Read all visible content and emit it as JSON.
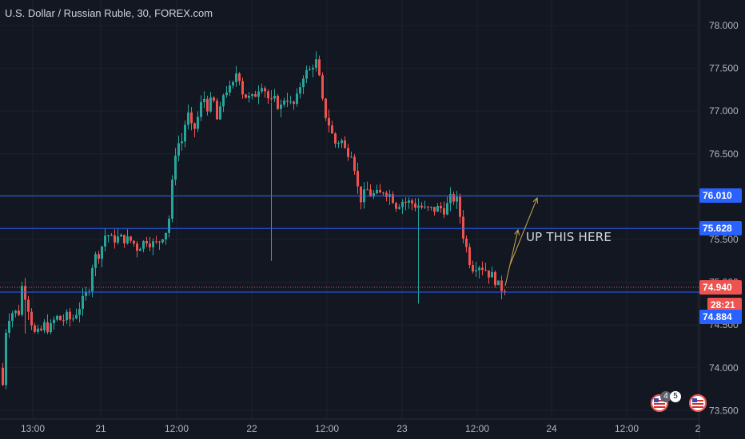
{
  "header": {
    "title": "U.S. Dollar / Russian Ruble, 30, FOREX.com"
  },
  "annotation": {
    "text": "UP THIS HERE"
  },
  "price_badges": {
    "line_upper": "76.010",
    "line_lower": "75.628",
    "current_price": "74.940",
    "countdown": "28:21",
    "line_support": "74.884"
  },
  "events": {
    "count_a": "4",
    "count_b": "5"
  },
  "colors": {
    "background": "#131722",
    "grid": "#1e222d",
    "bull": "#26a69a",
    "bear": "#ef5350",
    "hline": "#2962ff",
    "arrow": "#c8a951",
    "price_badge": "#ef5350",
    "level_badge": "#2962ff"
  },
  "chart_data": {
    "type": "candlestick",
    "title": "U.S. Dollar / Russian Ruble, 30, FOREX.com",
    "ylim": [
      73.5,
      78.0
    ],
    "yticks": [
      "78.000",
      "77.500",
      "77.000",
      "76.500",
      "76.000",
      "75.500",
      "75.000",
      "74.500",
      "74.000",
      "73.500"
    ],
    "xticks": [
      "13:00",
      "21",
      "12:00",
      "22",
      "12:00",
      "23",
      "12:00",
      "24",
      "12:00",
      "2"
    ],
    "horizontal_levels": [
      76.01,
      75.628,
      74.884
    ],
    "current_price": 74.94,
    "series_path": [
      [
        0,
        74.2
      ],
      [
        4,
        73.8
      ],
      [
        9,
        74.6
      ],
      [
        14,
        74.6
      ],
      [
        18,
        74.7
      ],
      [
        22,
        74.6
      ],
      [
        26,
        74.7
      ],
      [
        28,
        74.95
      ],
      [
        30,
        74.9
      ],
      [
        34,
        74.8
      ],
      [
        38,
        74.6
      ],
      [
        44,
        74.4
      ],
      [
        50,
        74.4
      ],
      [
        56,
        74.5
      ],
      [
        62,
        74.45
      ],
      [
        66,
        74.5
      ],
      [
        70,
        74.6
      ],
      [
        78,
        74.55
      ],
      [
        84,
        74.6
      ],
      [
        90,
        74.55
      ],
      [
        96,
        74.65
      ],
      [
        102,
        74.75
      ],
      [
        108,
        74.85
      ],
      [
        112,
        74.95
      ],
      [
        116,
        75.2
      ],
      [
        120,
        75.3
      ],
      [
        126,
        75.35
      ],
      [
        130,
        75.5
      ],
      [
        134,
        75.6
      ],
      [
        138,
        75.5
      ],
      [
        142,
        75.5
      ],
      [
        150,
        75.52
      ],
      [
        158,
        75.5
      ],
      [
        166,
        75.48
      ],
      [
        172,
        75.4
      ],
      [
        178,
        75.45
      ],
      [
        184,
        75.5
      ],
      [
        190,
        75.45
      ],
      [
        196,
        75.45
      ],
      [
        202,
        75.5
      ],
      [
        206,
        75.6
      ],
      [
        210,
        75.6
      ],
      [
        214,
        75.9
      ],
      [
        218,
        76.4
      ],
      [
        222,
        76.65
      ],
      [
        226,
        76.6
      ],
      [
        230,
        76.7
      ],
      [
        234,
        77.0
      ],
      [
        238,
        76.9
      ],
      [
        242,
        76.7
      ],
      [
        246,
        76.9
      ],
      [
        250,
        76.95
      ],
      [
        254,
        77.2
      ],
      [
        258,
        77.1
      ],
      [
        262,
        77.0
      ],
      [
        266,
        77.2
      ],
      [
        270,
        77.0
      ],
      [
        274,
        76.8
      ],
      [
        278,
        77.2
      ],
      [
        282,
        77.2
      ],
      [
        286,
        77.3
      ],
      [
        290,
        77.2
      ],
      [
        294,
        77.4
      ],
      [
        298,
        77.5
      ],
      [
        302,
        77.3
      ],
      [
        306,
        77.15
      ],
      [
        310,
        77.2
      ],
      [
        314,
        77.1
      ],
      [
        318,
        77.2
      ],
      [
        322,
        77.2
      ],
      [
        326,
        77.35
      ],
      [
        330,
        77.3
      ],
      [
        334,
        77.2
      ],
      [
        338,
        77.1
      ],
      [
        342,
        77.1
      ],
      [
        346,
        77.15
      ],
      [
        350,
        77.0
      ],
      [
        354,
        77.1
      ],
      [
        358,
        77.2
      ],
      [
        362,
        77.1
      ],
      [
        366,
        77.05
      ],
      [
        370,
        77.1
      ],
      [
        374,
        77.2
      ],
      [
        378,
        77.4
      ],
      [
        382,
        77.45
      ],
      [
        386,
        77.45
      ],
      [
        390,
        77.5
      ],
      [
        394,
        77.6
      ],
      [
        398,
        77.55
      ],
      [
        402,
        77.2
      ],
      [
        406,
        77.0
      ],
      [
        410,
        76.9
      ],
      [
        414,
        76.8
      ],
      [
        418,
        76.65
      ],
      [
        422,
        76.6
      ],
      [
        426,
        76.7
      ],
      [
        430,
        76.6
      ],
      [
        434,
        76.5
      ],
      [
        438,
        76.55
      ],
      [
        442,
        76.5
      ],
      [
        446,
        76.2
      ],
      [
        450,
        76.0
      ],
      [
        454,
        75.95
      ],
      [
        458,
        76.1
      ],
      [
        462,
        76.05
      ],
      [
        466,
        76.0
      ],
      [
        470,
        76.05
      ],
      [
        474,
        76.0
      ],
      [
        478,
        76.05
      ],
      [
        482,
        76.1
      ],
      [
        486,
        76.0
      ],
      [
        490,
        76.05
      ],
      [
        494,
        75.9
      ],
      [
        498,
        75.9
      ],
      [
        502,
        75.95
      ],
      [
        506,
        75.95
      ],
      [
        510,
        75.92
      ],
      [
        514,
        75.95
      ],
      [
        518,
        75.9
      ],
      [
        522,
        75.9
      ],
      [
        526,
        75.9
      ],
      [
        530,
        75.85
      ],
      [
        534,
        75.85
      ],
      [
        538,
        75.85
      ],
      [
        542,
        75.85
      ],
      [
        546,
        75.85
      ],
      [
        550,
        75.88
      ],
      [
        554,
        75.85
      ],
      [
        558,
        75.85
      ],
      [
        562,
        75.95
      ],
      [
        566,
        76.0
      ],
      [
        570,
        75.95
      ],
      [
        574,
        75.95
      ],
      [
        578,
        75.6
      ],
      [
        582,
        75.5
      ],
      [
        586,
        75.3
      ],
      [
        590,
        75.2
      ],
      [
        594,
        75.15
      ],
      [
        598,
        75.25
      ],
      [
        602,
        75.15
      ],
      [
        606,
        75.2
      ],
      [
        610,
        75.1
      ],
      [
        614,
        75.1
      ],
      [
        618,
        75.05
      ],
      [
        622,
        75.0
      ],
      [
        626,
        74.92
      ],
      [
        630,
        74.94
      ]
    ],
    "spikes": [
      [
        338,
        77.1,
        75.25
      ],
      [
        522,
        75.9,
        74.75
      ],
      [
        626,
        74.95,
        74.8
      ],
      [
        30,
        74.95,
        74.4
      ]
    ]
  }
}
